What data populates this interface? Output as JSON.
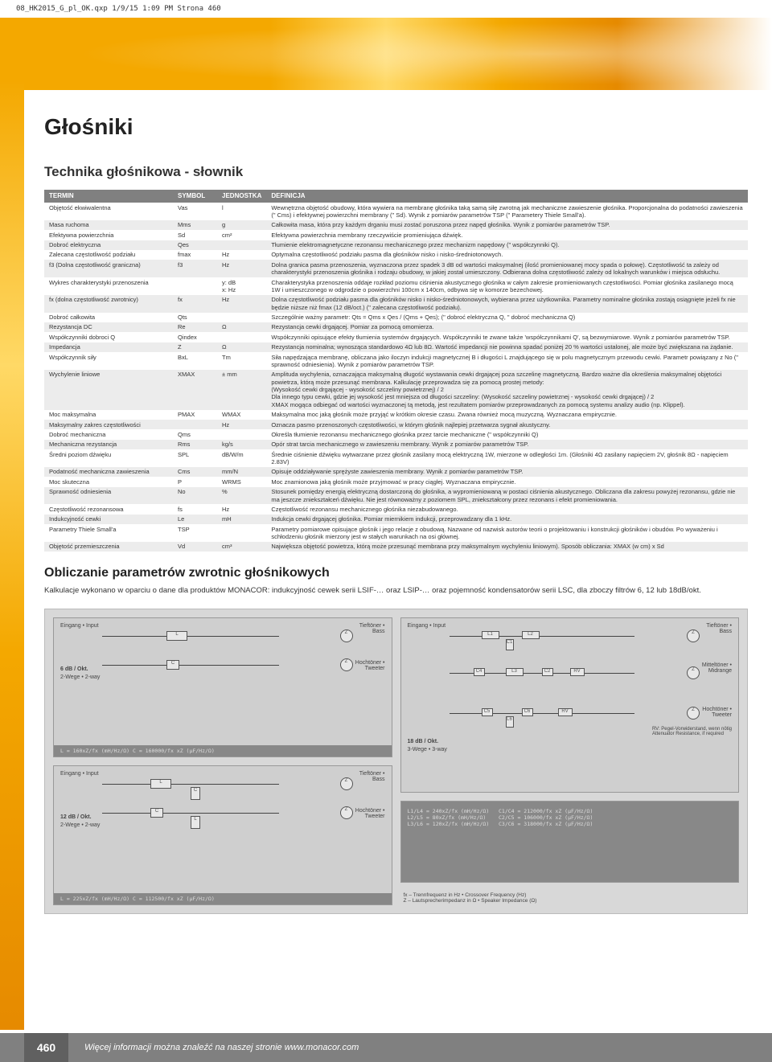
{
  "header_meta": "08_HK2015_G_pl_OK.qxp  1/9/15  1:09 PM  Strona 460",
  "category_title": "Głośniki",
  "section_title": "Technika głośnikowa - słownik",
  "table": {
    "headers": [
      "TERMIN",
      "SYMBOL",
      "JEDNOSTKA",
      "DEFINICJA"
    ],
    "rows": [
      {
        "term": "Objętość ekwiwalentna",
        "sym": "Vas",
        "unit": "l",
        "def": "Wewnętrzna objętość obudowy, która wywiera na membranę głośnika taką samą siłę zwrotną jak mechaniczne zawieszenie głośnika. Proporcjonalna do podatności zawieszenia (\" Cms) i efektywnej powierzchni membrany (\" Sd). Wynik z pomiarów parametrów TSP (\" Parametery Thiele Small'a)."
      },
      {
        "term": "Masa ruchoma",
        "sym": "Mms",
        "unit": "g",
        "def": "Całkowita masa, która przy każdym drganiu musi zostać poruszona przez napęd głośnika. Wynik z pomiarów parametrów TSP."
      },
      {
        "term": "Efektywna powierzchnia",
        "sym": "Sd",
        "unit": "cm²",
        "def": "Efektywna powierzchnia membrany rzeczywiście promieniująca dźwięk."
      },
      {
        "term": "Dobroć elektryczna",
        "sym": "Qes",
        "unit": "",
        "def": "Tłumienie elektromagnetyczne rezonansu mechanicznego przez mechanizm napędowy (\" współczynniki Q)."
      },
      {
        "term": "Zalecana częstotliwość podziału",
        "sym": "fmax",
        "unit": "Hz",
        "def": "Optymalna częstotliwość podziału pasma dla głośników nisko i nisko-średniotonowych."
      },
      {
        "term": "f3 (Dolna częstotliwość graniczna)",
        "sym": "f3",
        "unit": "Hz",
        "def": "Dolna granica pasma przenoszenia, wyznaczona przez spadek 3 dB od wartości maksymalnej (ilość promieniowanej mocy spada o połowę). Częstotliwość ta zależy od charakterystyki przenoszenia głośnika i rodzaju obudowy, w jakiej został umieszczony. Odbierana dolna częstotliwość zależy od lokalnych warunków i miejsca odsłuchu."
      },
      {
        "term": "Wykres charakterystyki przenoszenia",
        "sym": "",
        "unit": "y: dB\nx: Hz",
        "def": "Charakterystyka przenoszenia oddaje rozkład poziomu ciśnienia akustycznego głośnika w całym zakresie promieniowanych częstotliwości. Pomiar głośnika zasilanego mocą 1W i umieszczonego w odgrodzie o powierzchni 100cm x 140cm, odbywa się w komorze bezechowej."
      },
      {
        "term": "fx (dolna częstotliwość zwrotnicy)",
        "sym": "fx",
        "unit": "Hz",
        "def": "Dolna częstotliwość podziału pasma dla głośników nisko i nisko-średniotonowych, wybierana przez użytkownika. Parametry nominalne głośnika zostają osiągnięte jeżeli fx nie będzie niższe niż fmax (12 dB/oct.) (\" zalecana częstotliwość podziału)."
      },
      {
        "term": "Dobroć całkowita",
        "sym": "Qts",
        "unit": "",
        "def": "Szczególnie ważny parametr: Qts = Qms x Qes / (Qms + Qes); (\" dobroć elektryczna Q, \" dobroć mechaniczna Q)"
      },
      {
        "term": "Rezystancja DC",
        "sym": "Re",
        "unit": "Ω",
        "def": "Rezystancja cewki drgającej. Pomiar za pomocą omomierza."
      },
      {
        "term": "Współczynniki dobroci Q",
        "sym": "Qindex",
        "unit": "",
        "def": "Współczynniki opisujące efekty tłumienia systemów drgających. Współczynniki te zwane także 'współczynnikami Q', są bezwymiarowe. Wynik z pomiarów parametrów TSP."
      },
      {
        "term": "Impedancja",
        "sym": "Z",
        "unit": "Ω",
        "def": "Rezystancja nominalna; wynosząca standardowo 4Ω lub 8Ω. Wartość impedancji nie powinna spadać poniżej 20 % wartości ustalonej, ale może być zwiększana na żądanie."
      },
      {
        "term": "Współczynnik siły",
        "sym": "BxL",
        "unit": "Tm",
        "def": "Siła napędzająca membranę, obliczana jako iloczyn indukcji magnetycznej B i długości L znajdującego się w polu magnetycznym przewodu cewki. Parametr powiązany z No (\" sprawność odniesienia). Wynik z pomiarów parametrów TSP."
      },
      {
        "term": "Wychylenie liniowe",
        "sym": "XMAX",
        "unit": "± mm",
        "def": "Amplituda wychylenia, oznaczająca maksymalną długość wystawania cewki drgającej poza szczelinę magnetyczną. Bardzo ważne dla określenia maksymalnej objętości powietrza, którą może przesunąć membrana. Kalkulację przeprowadza się za pomocą prostej metody:\n(Wysokość cewki drgającej - wysokość szczeliny powietrznej) / 2\nDla innego typu cewki, gdzie jej wysokość jest mniejsza od długości szczeliny: (Wysokość szczeliny powietrznej - wysokość cewki drgającej) / 2\nXMAX mogąca odbiegać od wartości wyznaczonej tą metodą, jest rezultatem pomiarów przeprowadzanych za pomocą systemu analizy audio (np. Klippel)."
      },
      {
        "term": "Moc maksymalna",
        "sym": "PMAX",
        "unit": "WMAX",
        "def": "Maksymalna moc jaką głośnik może przyjąć w krótkim okresie czasu. Zwana również mocą muzyczną. Wyznaczana empirycznie."
      },
      {
        "term": "Maksymalny zakres częstotliwości",
        "sym": "",
        "unit": "Hz",
        "def": "Oznacza pasmo przenoszonych częstotliwości, w którym głośnik najlepiej przetwarza sygnał akustyczny."
      },
      {
        "term": "Dobroć mechaniczna",
        "sym": "Qms",
        "unit": "",
        "def": "Określa tłumienie rezonansu mechanicznego głośnika przez tarcie mechaniczne (\" współczynniki Q)"
      },
      {
        "term": "Mechaniczna rezystancja",
        "sym": "Rms",
        "unit": "kg/s",
        "def": "Opór strat tarcia mechanicznego w zawieszeniu membrany. Wynik z pomiarów parametrów TSP."
      },
      {
        "term": "Średni poziom dźwięku",
        "sym": "SPL",
        "unit": "dB/W/m",
        "def": "Średnie ciśnienie dźwięku wytwarzane przez głośnik zasilany mocą elektryczną 1W, mierzone w odległości 1m. (Głośniki 4Ω zasilany napięciem 2V, głośnik 8Ω - napięciem 2.83V)"
      },
      {
        "term": "Podatność mechaniczna zawieszenia",
        "sym": "Cms",
        "unit": "mm/N",
        "def": "Opisuje oddziaływanie sprężyste zawieszenia membrany. Wynik z pomiarów parametrów TSP."
      },
      {
        "term": "Moc skuteczna",
        "sym": "P",
        "unit": "WRMS",
        "def": "Moc znamionowa jaką głośnik może przyjmować w pracy ciągłej. Wyznaczana empirycznie."
      },
      {
        "term": "Sprawność odniesienia",
        "sym": "No",
        "unit": "%",
        "def": "Stosunek pomiędzy energią elektryczną dostarczoną do głośnika, a wypromieniowaną w postaci ciśnienia akustycznego. Obliczana dla zakresu powyżej rezonansu, gdzie nie ma jeszcze zniekształceń dźwięku. Nie jest równoważny z poziomem SPL, zniekształcony przez rezonans i efekt promieniowania."
      },
      {
        "term": "Częstotliwość rezonansowa",
        "sym": "fs",
        "unit": "Hz",
        "def": "Częstotliwość rezonansu mechanicznego głośnika niezabudowanego."
      },
      {
        "term": "Indukcyjność cewki",
        "sym": "Le",
        "unit": "mH",
        "def": "Indukcja cewki drgającej głośnika. Pomiar miernikiem indukcji, przeprowadzany dla 1 kHz."
      },
      {
        "term": "Parametry Thiele Small'a",
        "sym": "TSP",
        "unit": "",
        "def": "Parametry pomiarowe opisujące głośnik i jego relacje z obudową. Nazwane od nazwisk autorów teorii o projektowaniu i konstrukcji głośników i obudów. Po wyważeniu i schłodzeniu głośnik mierzony jest w stałych warunkach na osi głównej."
      },
      {
        "term": "Objętość przemieszczenia",
        "sym": "Vd",
        "unit": "cm³",
        "def": "Największa objętość powietrza, którą może przesunąć membrana przy maksymalnym wychyleniu liniowym). Sposób obliczania: XMAX (w cm) x Sd"
      }
    ]
  },
  "calc": {
    "title": "Obliczanie parametrów zwrotnic głośnikowych",
    "text": "Kalkulacje wykonano w oparciu o dane dla produktów MONACOR: indukcyjność cewek serii LSIF-… oraz LSIP-… oraz pojemność kondensatorów serii LSC, dla zboczy filtrów 6, 12 lub 18dB/okt."
  },
  "diagrams": {
    "d1": {
      "slope": "6 dB / Okt.",
      "type": "2-Wege • 2-way",
      "in": "Eingang • Input",
      "out1": "Tieftöner •\nBass",
      "out2": "Hochtöner •\nTweeter",
      "formula": "L = 160xZ/fx (mH/Hz/Ω)    C = 160000/fx xZ (µF/Hz/Ω)"
    },
    "d2": {
      "slope": "12 dB / Okt.",
      "type": "2-Wege • 2-way",
      "in": "Eingang • Input",
      "out1": "Tieftöner •\nBass",
      "out2": "Hochtöner •\nTweeter",
      "formula": "L = 225xZ/fx (mH/Hz/Ω)    C = 112500/fx xZ (µF/Hz/Ω)"
    },
    "d3": {
      "slope": "18 dB / Okt.",
      "type": "3-Wege • 3-way",
      "in": "Eingang • Input",
      "out1": "Tieftöner •\nBass",
      "out2": "Mitteltöner •\nMidrange",
      "out3": "Hochtöner •\nTweeter",
      "note": "RV: Pegel-Vorwiderstand, wenn nötig\nAttenuator Resistance, if required",
      "formulas": "L1/L4 = 240xZ/fx (mH/Hz/Ω)   C1/C4 = 212000/fx xZ (µF/Hz/Ω)\nL2/L5 = 80xZ/fx (mH/Hz/Ω)    C2/C5 = 106000/fx xZ (µF/Hz/Ω)\nL3/L6 = 120xZ/fx (mH/Hz/Ω)   C3/C6 = 318000/fx xZ (µF/Hz/Ω)",
      "legend": "fx – Trennfrequenz in Hz • Crossover Frequency (Hz)\nZ – Lautsprecherimpedanz in Ω • Speaker Impedance (Ω)"
    }
  },
  "footer": {
    "page": "460",
    "text": "Więcej informacji można znaleźć na naszej stronie www.monacor.com"
  },
  "colors": {
    "header_bg": "#808080",
    "stripe": "#f4a800",
    "odd": "#ffffff",
    "even": "#ececec",
    "footer": "#808080"
  }
}
